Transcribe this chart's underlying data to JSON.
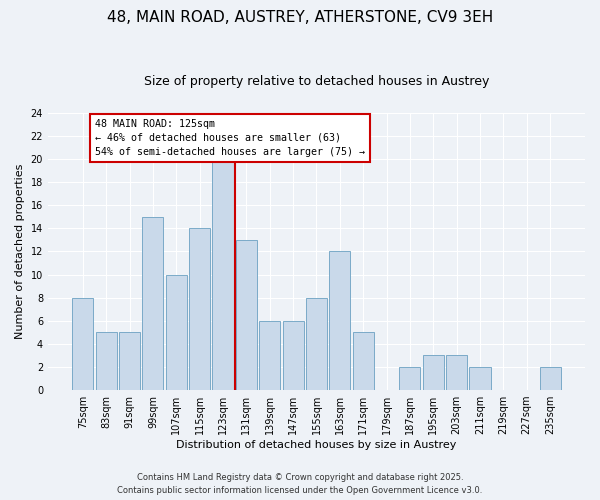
{
  "title": "48, MAIN ROAD, AUSTREY, ATHERSTONE, CV9 3EH",
  "subtitle": "Size of property relative to detached houses in Austrey",
  "xlabel": "Distribution of detached houses by size in Austrey",
  "ylabel": "Number of detached properties",
  "categories": [
    "75sqm",
    "83sqm",
    "91sqm",
    "99sqm",
    "107sqm",
    "115sqm",
    "123sqm",
    "131sqm",
    "139sqm",
    "147sqm",
    "155sqm",
    "163sqm",
    "171sqm",
    "179sqm",
    "187sqm",
    "195sqm",
    "203sqm",
    "211sqm",
    "219sqm",
    "227sqm",
    "235sqm"
  ],
  "values": [
    8,
    5,
    5,
    15,
    10,
    14,
    20,
    13,
    6,
    6,
    8,
    12,
    5,
    0,
    2,
    3,
    3,
    2,
    0,
    0,
    2
  ],
  "bar_color": "#c9d9ea",
  "bar_edge_color": "#7aaac8",
  "highlight_index": 6,
  "highlight_line_color": "#cc0000",
  "ylim": [
    0,
    24
  ],
  "yticks": [
    0,
    2,
    4,
    6,
    8,
    10,
    12,
    14,
    16,
    18,
    20,
    22,
    24
  ],
  "annotation_title": "48 MAIN ROAD: 125sqm",
  "annotation_line1": "← 46% of detached houses are smaller (63)",
  "annotation_line2": "54% of semi-detached houses are larger (75) →",
  "annotation_box_color": "#ffffff",
  "annotation_box_edge": "#cc0000",
  "footer1": "Contains HM Land Registry data © Crown copyright and database right 2025.",
  "footer2": "Contains public sector information licensed under the Open Government Licence v3.0.",
  "background_color": "#eef2f7",
  "grid_color": "#ffffff",
  "title_fontsize": 11,
  "subtitle_fontsize": 9,
  "tick_fontsize": 7,
  "label_fontsize": 8,
  "footer_fontsize": 6
}
